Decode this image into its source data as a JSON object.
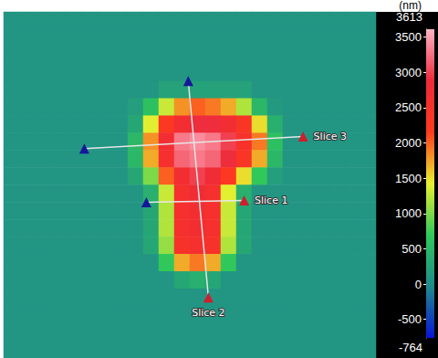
{
  "chart_data": {
    "type": "heatmap",
    "tick_labels": false,
    "cells": [
      [
        100,
        100,
        100,
        100,
        100,
        100,
        100,
        100,
        100,
        100,
        100,
        100,
        100,
        100,
        100,
        100,
        100,
        100,
        100,
        100,
        100,
        100,
        100,
        100
      ],
      [
        100,
        100,
        100,
        100,
        100,
        100,
        100,
        100,
        100,
        100,
        100,
        100,
        100,
        100,
        100,
        100,
        100,
        100,
        100,
        100,
        100,
        100,
        100,
        100
      ],
      [
        100,
        100,
        100,
        100,
        100,
        100,
        100,
        100,
        100,
        100,
        100,
        100,
        100,
        100,
        100,
        100,
        100,
        100,
        100,
        100,
        100,
        100,
        100,
        100
      ],
      [
        100,
        100,
        100,
        100,
        100,
        100,
        100,
        100,
        100,
        100,
        100,
        100,
        100,
        100,
        100,
        100,
        100,
        100,
        100,
        100,
        100,
        100,
        100,
        100
      ],
      [
        100,
        100,
        100,
        100,
        100,
        100,
        100,
        100,
        100,
        100,
        250,
        250,
        250,
        250,
        250,
        250,
        100,
        100,
        100,
        100,
        100,
        100,
        100,
        100
      ],
      [
        100,
        100,
        100,
        100,
        100,
        100,
        100,
        100,
        200,
        600,
        1300,
        1800,
        2000,
        1900,
        1700,
        1200,
        500,
        150,
        100,
        100,
        100,
        100,
        100,
        100
      ],
      [
        100,
        100,
        100,
        100,
        100,
        100,
        100,
        100,
        300,
        1400,
        2300,
        2700,
        2900,
        2900,
        2700,
        2400,
        1500,
        400,
        100,
        100,
        100,
        100,
        100,
        100
      ],
      [
        100,
        100,
        100,
        100,
        100,
        100,
        100,
        100,
        500,
        1800,
        2700,
        3300,
        3400,
        3300,
        3000,
        2500,
        1900,
        600,
        100,
        100,
        100,
        100,
        100,
        100
      ],
      [
        100,
        100,
        100,
        100,
        100,
        100,
        100,
        100,
        500,
        1700,
        2600,
        3200,
        3300,
        3200,
        2900,
        2400,
        1700,
        500,
        100,
        100,
        100,
        100,
        100,
        100
      ],
      [
        100,
        100,
        100,
        100,
        100,
        100,
        100,
        100,
        300,
        1000,
        2000,
        2700,
        3000,
        2800,
        2300,
        1500,
        700,
        200,
        100,
        100,
        100,
        100,
        100,
        100
      ],
      [
        100,
        100,
        100,
        100,
        100,
        100,
        100,
        100,
        100,
        400,
        1300,
        2600,
        2800,
        2600,
        1400,
        400,
        100,
        100,
        100,
        100,
        100,
        100,
        100,
        100
      ],
      [
        100,
        100,
        100,
        100,
        100,
        100,
        100,
        100,
        100,
        300,
        1200,
        2600,
        2700,
        2600,
        1300,
        300,
        100,
        100,
        100,
        100,
        100,
        100,
        100,
        100
      ],
      [
        100,
        100,
        100,
        100,
        100,
        100,
        100,
        100,
        100,
        300,
        1200,
        2600,
        2700,
        2600,
        1300,
        300,
        100,
        100,
        100,
        100,
        100,
        100,
        100,
        100
      ],
      [
        100,
        100,
        100,
        100,
        100,
        100,
        100,
        100,
        100,
        300,
        1100,
        2500,
        2600,
        2500,
        1200,
        300,
        100,
        100,
        100,
        100,
        100,
        100,
        100,
        100
      ],
      [
        100,
        100,
        100,
        100,
        100,
        100,
        100,
        100,
        100,
        100,
        700,
        1700,
        1900,
        1700,
        700,
        100,
        100,
        100,
        100,
        100,
        100,
        100,
        100,
        100
      ],
      [
        100,
        100,
        100,
        100,
        100,
        100,
        100,
        100,
        100,
        100,
        100,
        300,
        400,
        300,
        100,
        100,
        100,
        100,
        100,
        100,
        100,
        100,
        100,
        100
      ],
      [
        100,
        100,
        100,
        100,
        100,
        100,
        100,
        100,
        100,
        100,
        100,
        100,
        100,
        100,
        100,
        100,
        100,
        100,
        100,
        100,
        100,
        100,
        100,
        100
      ],
      [
        100,
        100,
        100,
        100,
        100,
        100,
        100,
        100,
        100,
        100,
        100,
        100,
        100,
        100,
        100,
        100,
        100,
        100,
        100,
        100,
        100,
        100,
        100,
        100
      ],
      [
        100,
        100,
        100,
        100,
        100,
        100,
        100,
        100,
        100,
        100,
        100,
        100,
        100,
        100,
        100,
        100,
        100,
        100,
        100,
        100,
        100,
        100,
        100,
        100
      ],
      [
        100,
        100,
        100,
        100,
        100,
        100,
        100,
        100,
        100,
        100,
        100,
        100,
        100,
        100,
        100,
        100,
        100,
        100,
        100,
        100,
        100,
        100,
        100,
        100
      ]
    ],
    "colorbar": {
      "title": "(nm)",
      "range": [
        -764,
        3613
      ],
      "ticks": [
        -500,
        0,
        500,
        1000,
        1500,
        2000,
        2500,
        3000,
        3500
      ]
    },
    "slices": [
      {
        "label": "Slice 1",
        "start": [
          9.2,
          11.0
        ],
        "end": [
          15.5,
          10.9
        ]
      },
      {
        "label": "Slice 2",
        "start": [
          11.9,
          4.0
        ],
        "end": [
          13.2,
          16.5
        ]
      },
      {
        "label": "Slice 3",
        "start": [
          5.2,
          7.9
        ],
        "end": [
          19.3,
          7.2
        ]
      }
    ]
  }
}
